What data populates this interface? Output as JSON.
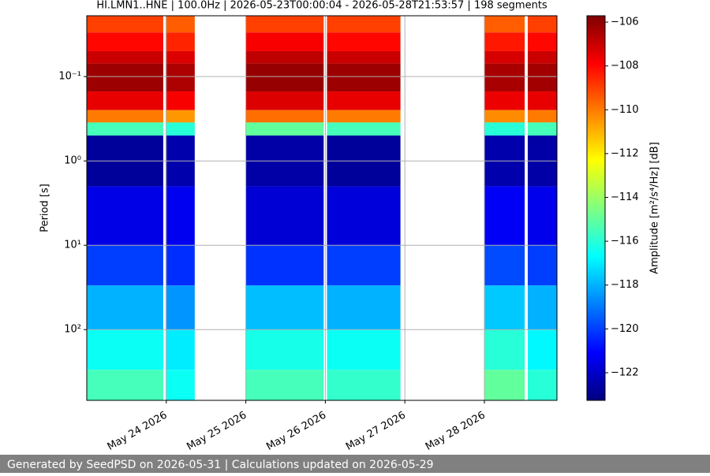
{
  "chart_data": {
    "type": "heatmap",
    "title": "HI.LMN1..HNE | 100.0Hz | 2026-05-23T00:00:04 - 2026-05-28T21:53:57 | 198 segments",
    "ylabel": "Period [s]",
    "colorbar_label": "Amplitude [m²/s⁴/Hz] [dB]",
    "colormap": "jet",
    "grid": true,
    "ylog": true,
    "xlim": [
      "2026-05-23T00:00:04",
      "2026-05-28T21:53:57"
    ],
    "xticks": [
      {
        "value": "2026-05-24",
        "label": "May 24 2026"
      },
      {
        "value": "2026-05-25",
        "label": "May 25 2026"
      },
      {
        "value": "2026-05-26",
        "label": "May 26 2026"
      },
      {
        "value": "2026-05-27",
        "label": "May 27 2026"
      },
      {
        "value": "2026-05-28",
        "label": "May 28 2026"
      }
    ],
    "ylim": [
      0.019,
      690
    ],
    "yticks": [
      {
        "value": 0.1,
        "label": "10⁻¹"
      },
      {
        "value": 1,
        "label": "10⁰"
      },
      {
        "value": 10,
        "label": "10¹"
      },
      {
        "value": 100,
        "label": "10²"
      }
    ],
    "clim": [
      -123.26,
      -105.71
    ],
    "cticks": [
      {
        "value": -106,
        "label": "−106"
      },
      {
        "value": -108,
        "label": "−108"
      },
      {
        "value": -110,
        "label": "−110"
      },
      {
        "value": -112,
        "label": "−112"
      },
      {
        "value": -114,
        "label": "−114"
      },
      {
        "value": -116,
        "label": "−116"
      },
      {
        "value": -118,
        "label": "−118"
      },
      {
        "value": -120,
        "label": "−120"
      },
      {
        "value": -122,
        "label": "−122"
      }
    ],
    "columns": [
      {
        "start": "2026-05-23T00:00:04",
        "end": "2026-05-23T23:05"
      },
      {
        "start": "2026-05-23T23:50",
        "end": "2026-05-24T08:35"
      },
      {
        "start": "2026-05-25T00:05",
        "end": "2026-05-25T23:30"
      },
      {
        "start": "2026-05-26T00:30",
        "end": "2026-05-26T22:40"
      },
      {
        "start": "2026-05-28T00:05",
        "end": "2026-05-28T12:10"
      },
      {
        "start": "2026-05-28T13:05",
        "end": "2026-05-28T21:53:57"
      }
    ],
    "period_edges": [
      0.019,
      0.03,
      0.05,
      0.07,
      0.15,
      0.25,
      0.35,
      0.5,
      2,
      10,
      30,
      100,
      300,
      690
    ],
    "values": [
      [
        -109,
        -109.5,
        -109,
        -109,
        -109.5,
        -109
      ],
      [
        -108,
        -108.5,
        -107.8,
        -108,
        -108.3,
        -108
      ],
      [
        -107,
        -107.3,
        -106.8,
        -107,
        -107.2,
        -107
      ],
      [
        -106.2,
        -106.5,
        -106.1,
        -106.2,
        -106.4,
        -106.3
      ],
      [
        -107.5,
        -107.8,
        -107.3,
        -107.5,
        -107.6,
        -107.5
      ],
      [
        -110,
        -110.5,
        -109.8,
        -110,
        -110.3,
        -110
      ],
      [
        -115.5,
        -116,
        -115,
        -115.5,
        -116,
        -115.5
      ],
      [
        -122.8,
        -122.5,
        -122.6,
        -122.8,
        -122.5,
        -122.6
      ],
      [
        -121.5,
        -121.3,
        -121.8,
        -121.7,
        -121.2,
        -121.4
      ],
      [
        -120,
        -120.3,
        -120.2,
        -120,
        -119.8,
        -120
      ],
      [
        -118,
        -118.5,
        -117.8,
        -118,
        -117.6,
        -118
      ],
      [
        -116.5,
        -117,
        -116.3,
        -116.5,
        -116,
        -116.8
      ],
      [
        -115.5,
        -116.5,
        -115.5,
        -115.8,
        -115,
        -116
      ]
    ]
  },
  "footer": {
    "text": "Generated by SeedPSD on 2026-05-31 | Calculations updated on 2026-05-29"
  }
}
